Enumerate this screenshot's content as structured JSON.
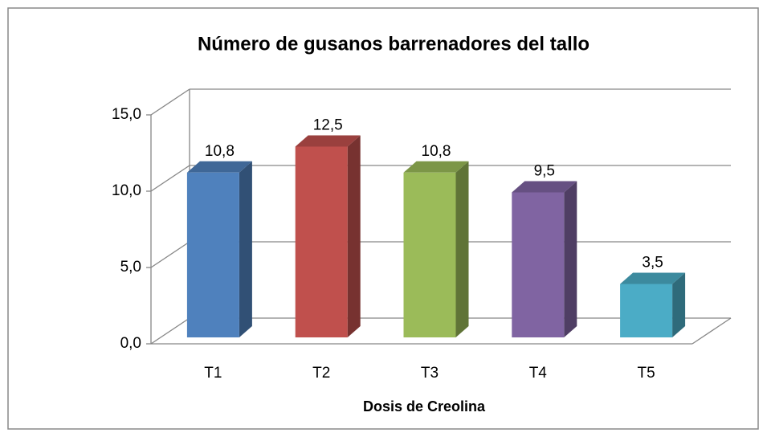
{
  "chart_data": {
    "type": "bar3d",
    "title": "Número de gusanos barrenadores del tallo",
    "x_label": "Dosis de Creolina",
    "categories": [
      "T1",
      "T2",
      "T3",
      "T4",
      "T5"
    ],
    "values": [
      10.8,
      12.5,
      10.8,
      9.5,
      3.5
    ],
    "value_labels": [
      "10,8",
      "12,5",
      "10,8",
      "9,5",
      "3,5"
    ],
    "colors": [
      "#4f81bd",
      "#c0504d",
      "#9bbb59",
      "#8064a2",
      "#4bacc6"
    ],
    "ylim": [
      0,
      15
    ],
    "yticks": [
      {
        "value": 0,
        "label": "0,0"
      },
      {
        "value": 5,
        "label": "5,0"
      },
      {
        "value": 10,
        "label": "10,0"
      },
      {
        "value": 15,
        "label": "15,0"
      }
    ],
    "grid": true
  }
}
